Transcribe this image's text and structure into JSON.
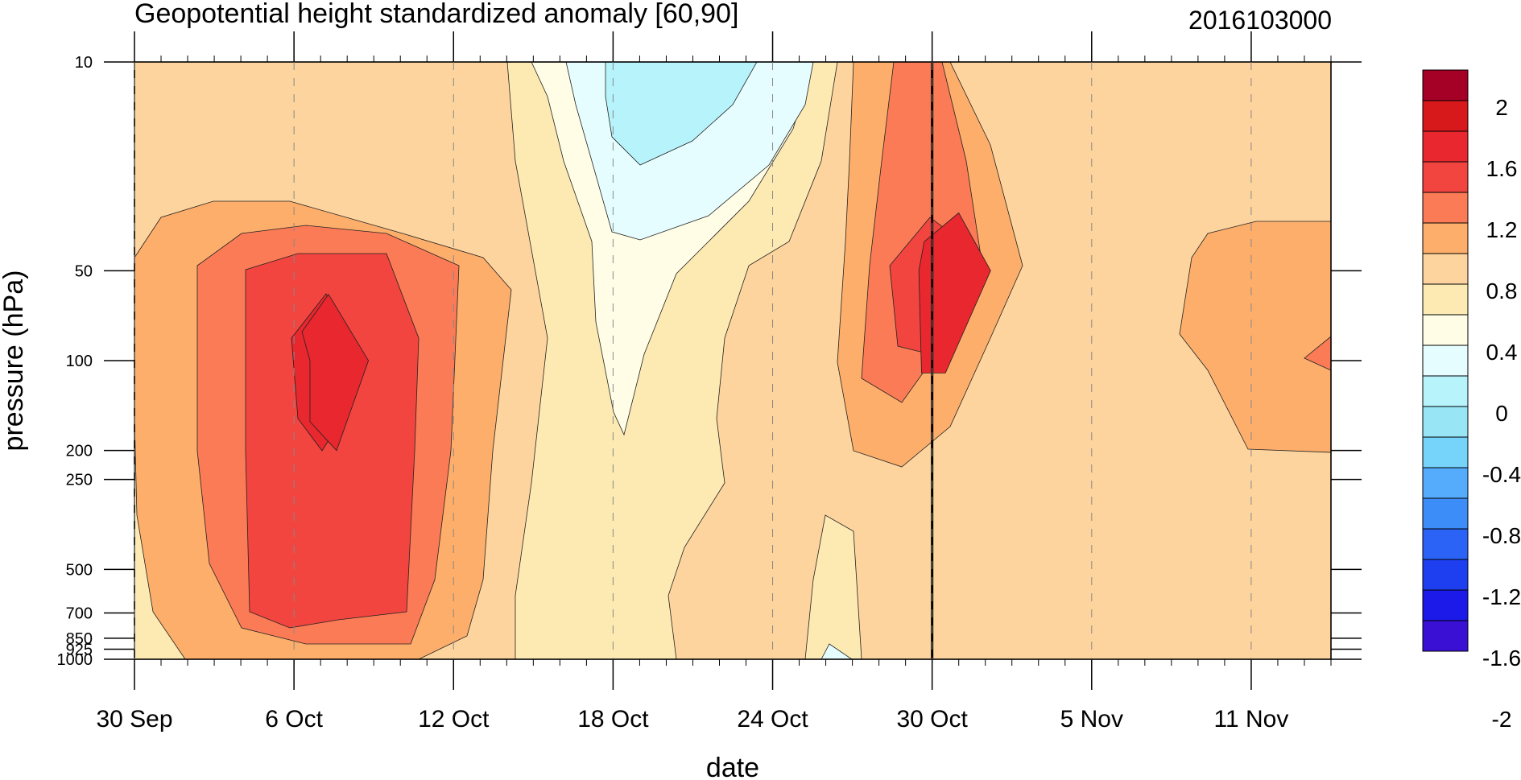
{
  "chart_data": {
    "type": "heatmap",
    "title": "Geopotential height standardized anomaly [60,90]",
    "date_stamp": "2016103000",
    "xlabel": "date",
    "ylabel": "pressure (hPa)",
    "x_ticks": [
      "30 Sep",
      "6 Oct",
      "12 Oct",
      "18 Oct",
      "24 Oct",
      "30 Oct",
      "5 Nov",
      "11 Nov"
    ],
    "x_range": [
      "2016-09-30",
      "2016-11-14"
    ],
    "y_ticks": [
      10,
      50,
      100,
      200,
      250,
      500,
      700,
      850,
      925,
      1000
    ],
    "y_scale": "log",
    "y_range": [
      1000,
      10
    ],
    "current_date_marker": "2016-10-30",
    "colorbar_labels": [
      "2",
      "1.6",
      "1.2",
      "0.8",
      "0.4",
      "0",
      "-0.4",
      "-0.8",
      "-1.2",
      "-1.6",
      "-2"
    ],
    "colorbar_colors": [
      "#a50026",
      "#d7191c",
      "#e8272f",
      "#f2453f",
      "#fb7b56",
      "#fdae6b",
      "#fdd49e",
      "#fdeab3",
      "#fffde6",
      "#e6fdff",
      "#b7f3fb",
      "#98e5f5",
      "#76d3fa",
      "#55abfc",
      "#3d8df8",
      "#2a63f5",
      "#1e3ff0",
      "#1b1ae8",
      "#3a10d4"
    ],
    "series": [
      {
        "level": "1.6",
        "points": [
          [
            6.6,
            100
          ],
          [
            6.6,
            160
          ],
          [
            7.6,
            200
          ],
          [
            8.8,
            100
          ],
          [
            7.3,
            60
          ],
          [
            6.3,
            80
          ]
        ]
      },
      {
        "level": "1.6",
        "points": [
          [
            29.5,
            50
          ],
          [
            29.6,
            110
          ],
          [
            30.5,
            110
          ],
          [
            32.2,
            50
          ],
          [
            31,
            32
          ],
          [
            29.7,
            40
          ]
        ]
      }
    ]
  }
}
